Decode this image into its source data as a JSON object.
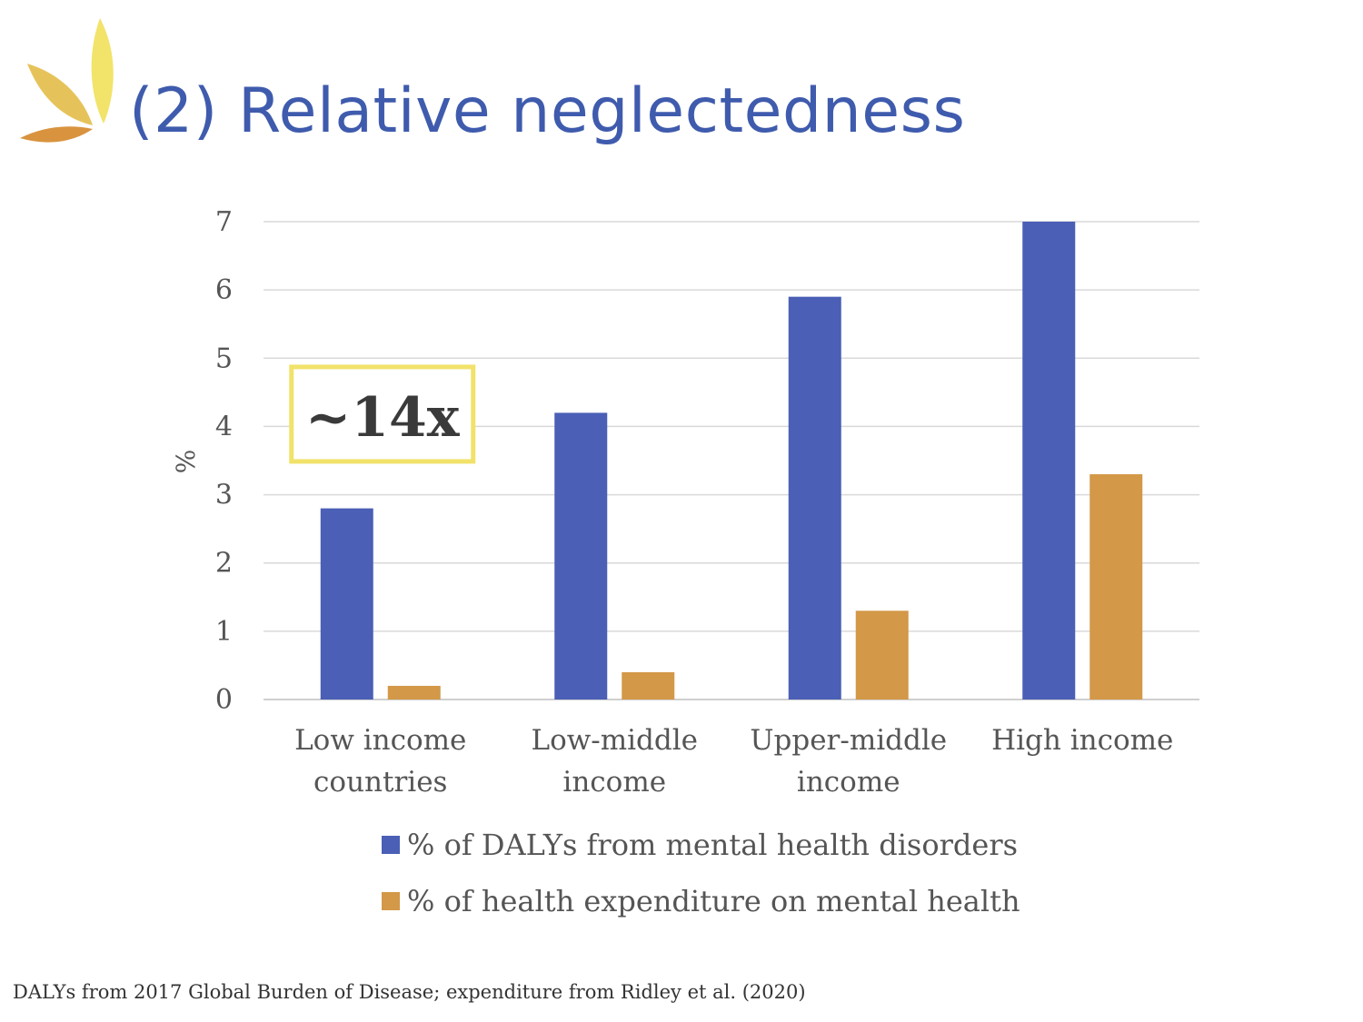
{
  "slide": {
    "title": "(2) Relative neglectedness",
    "footnote": "DALYs from 2017 Global Burden of Disease; expenditure from Ridley et al. (2020)",
    "logo_icon": "leaf-logo-icon"
  },
  "colors": {
    "title": "#3f5bad",
    "series_dalys": "#4a5fb5",
    "series_expenditure": "#d39848",
    "callout_border": "#f1e26a",
    "gridline": "#d9d9d9"
  },
  "chart_data": {
    "type": "bar",
    "title": "",
    "xlabel": "",
    "ylabel": "%",
    "ylim": [
      0,
      7
    ],
    "yticks": [
      0,
      1,
      2,
      3,
      4,
      5,
      6,
      7
    ],
    "grid": true,
    "legend_position": "bottom",
    "categories": [
      [
        "Low income",
        "countries"
      ],
      [
        "Low-middle",
        "income"
      ],
      [
        "Upper-middle",
        "income"
      ],
      [
        "High income"
      ]
    ],
    "series": [
      {
        "name": "% of DALYs from mental health disorders",
        "values": [
          2.8,
          4.2,
          5.9,
          7.0
        ]
      },
      {
        "name": "% of health expenditure on mental health",
        "values": [
          0.2,
          0.4,
          1.3,
          3.3
        ]
      }
    ],
    "annotations": [
      {
        "text": "~14x",
        "category_index": 0,
        "y": 4.1
      }
    ]
  }
}
